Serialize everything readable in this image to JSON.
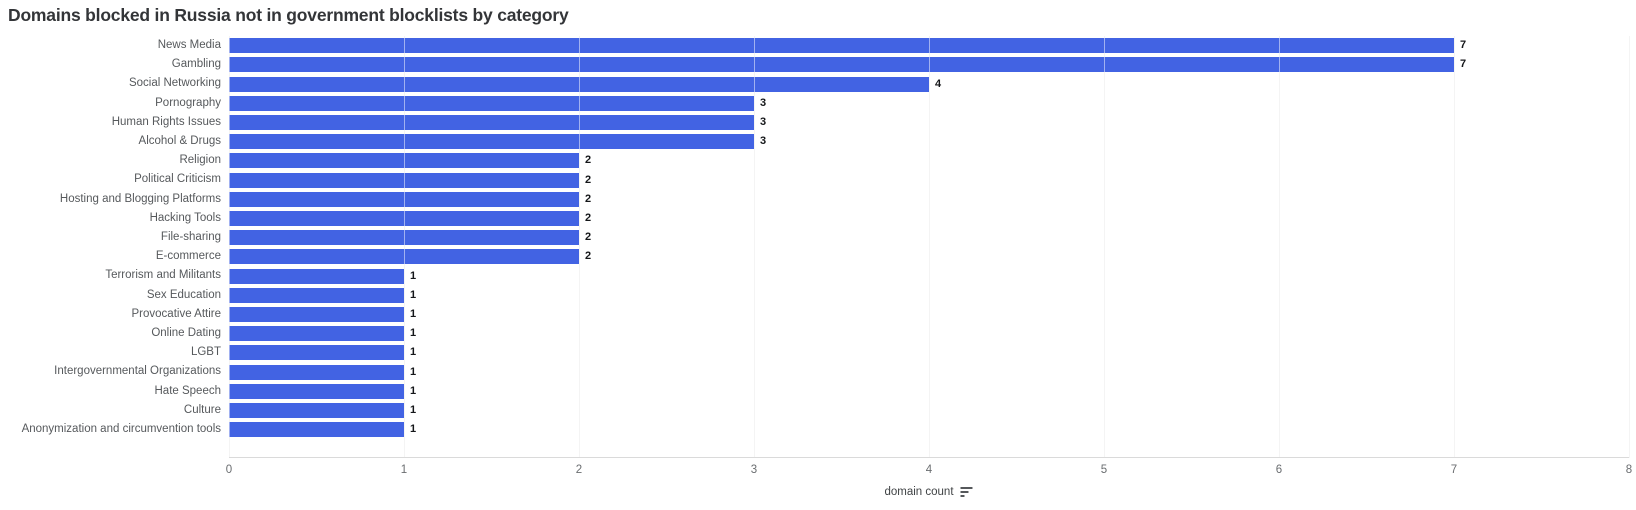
{
  "title": "Domains blocked in Russia not in government blocklists by category",
  "colors": {
    "bar": "#4263E3",
    "grid": "#e9e9e9",
    "axis_line": "#dadada",
    "title_text": "#333538",
    "category_label": "#56595c",
    "tick_label": "#6a6d70",
    "value_label": "#141619"
  },
  "x_axis": {
    "label": "domain count",
    "sort_icon": "sort-descending-icon"
  },
  "chart_data": {
    "type": "bar",
    "orientation": "horizontal",
    "title": "Domains blocked in Russia not in government blocklists by category",
    "xlabel": "domain count",
    "ylabel": "",
    "xlim": [
      0,
      8
    ],
    "x_ticks": [
      0,
      1,
      2,
      3,
      4,
      5,
      6,
      7,
      8
    ],
    "grid": true,
    "value_labels": true,
    "legend": "none",
    "categories": [
      "News Media",
      "Gambling",
      "Social Networking",
      "Pornography",
      "Human Rights Issues",
      "Alcohol & Drugs",
      "Religion",
      "Political Criticism",
      "Hosting and Blogging Platforms",
      "Hacking Tools",
      "File-sharing",
      "E-commerce",
      "Terrorism and Militants",
      "Sex Education",
      "Provocative Attire",
      "Online Dating",
      "LGBT",
      "Intergovernmental Organizations",
      "Hate Speech",
      "Culture",
      "Anonymization and circumvention tools"
    ],
    "values": [
      7,
      7,
      4,
      3,
      3,
      3,
      2,
      2,
      2,
      2,
      2,
      2,
      1,
      1,
      1,
      1,
      1,
      1,
      1,
      1,
      1
    ]
  }
}
